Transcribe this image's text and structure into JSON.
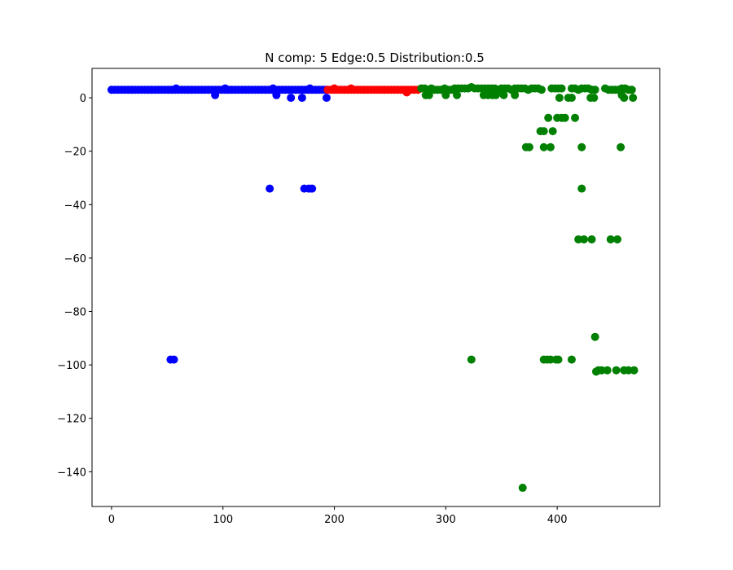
{
  "chart_data": {
    "type": "scatter",
    "title": "N comp: 5 Edge:0.5 Distribution:0.5",
    "xlabel": "",
    "ylabel": "",
    "xlim": [
      -17.5,
      492
    ],
    "ylim": [
      -153,
      11
    ],
    "xticks": [
      0,
      100,
      200,
      300,
      400
    ],
    "yticks": [
      0,
      -20,
      -40,
      -60,
      -80,
      -100,
      -120,
      -140
    ],
    "xtick_labels": [
      "0",
      "100",
      "200",
      "300",
      "400"
    ],
    "ytick_labels": [
      "0",
      "−20",
      "−40",
      "−60",
      "−80",
      "−100",
      "−120",
      "−140"
    ],
    "grid": false,
    "series": [
      {
        "color": "#0000ff",
        "points": [
          [
            0,
            3
          ],
          [
            3,
            3
          ],
          [
            6,
            3
          ],
          [
            9,
            3
          ],
          [
            12,
            3
          ],
          [
            15,
            3
          ],
          [
            18,
            3
          ],
          [
            21,
            3
          ],
          [
            24,
            3
          ],
          [
            27,
            3
          ],
          [
            30,
            3
          ],
          [
            33,
            3
          ],
          [
            36,
            3
          ],
          [
            39,
            3
          ],
          [
            42,
            3
          ],
          [
            45,
            3
          ],
          [
            48,
            3
          ],
          [
            51,
            3
          ],
          [
            54,
            3
          ],
          [
            57,
            3
          ],
          [
            60,
            3
          ],
          [
            63,
            3
          ],
          [
            66,
            3
          ],
          [
            69,
            3
          ],
          [
            72,
            3
          ],
          [
            75,
            3
          ],
          [
            78,
            3
          ],
          [
            81,
            3
          ],
          [
            84,
            3
          ],
          [
            87,
            3
          ],
          [
            90,
            3
          ],
          [
            93,
            3
          ],
          [
            96,
            3
          ],
          [
            99,
            3
          ],
          [
            102,
            3
          ],
          [
            105,
            3
          ],
          [
            108,
            3
          ],
          [
            111,
            3
          ],
          [
            114,
            3
          ],
          [
            117,
            3
          ],
          [
            120,
            3
          ],
          [
            123,
            3
          ],
          [
            126,
            3
          ],
          [
            129,
            3
          ],
          [
            132,
            3
          ],
          [
            135,
            3
          ],
          [
            138,
            3
          ],
          [
            141,
            3
          ],
          [
            144,
            3
          ],
          [
            147,
            3
          ],
          [
            150,
            3
          ],
          [
            153,
            3
          ],
          [
            156,
            3
          ],
          [
            159,
            3
          ],
          [
            162,
            3
          ],
          [
            165,
            3
          ],
          [
            168,
            3
          ],
          [
            171,
            3
          ],
          [
            174,
            3
          ],
          [
            177,
            3
          ],
          [
            180,
            3
          ],
          [
            183,
            3
          ],
          [
            186,
            3
          ],
          [
            189,
            3
          ],
          [
            192,
            3
          ],
          [
            58,
            3.5
          ],
          [
            102,
            3.5
          ],
          [
            145,
            3.5
          ],
          [
            178,
            3.5
          ],
          [
            93,
            1
          ],
          [
            148,
            1
          ],
          [
            161,
            0
          ],
          [
            171,
            0
          ],
          [
            193,
            0
          ],
          [
            142,
            -34
          ],
          [
            173,
            -34
          ],
          [
            177,
            -34
          ],
          [
            180,
            -34
          ],
          [
            53,
            -98
          ],
          [
            56,
            -98
          ]
        ]
      },
      {
        "color": "#ff0000",
        "points": [
          [
            194,
            3
          ],
          [
            197,
            3
          ],
          [
            200,
            3
          ],
          [
            203,
            3
          ],
          [
            206,
            3
          ],
          [
            209,
            3
          ],
          [
            212,
            3
          ],
          [
            215,
            3
          ],
          [
            218,
            3
          ],
          [
            221,
            3
          ],
          [
            224,
            3
          ],
          [
            227,
            3
          ],
          [
            230,
            3
          ],
          [
            233,
            3
          ],
          [
            236,
            3
          ],
          [
            239,
            3
          ],
          [
            242,
            3
          ],
          [
            245,
            3
          ],
          [
            248,
            3
          ],
          [
            251,
            3
          ],
          [
            254,
            3
          ],
          [
            257,
            3
          ],
          [
            260,
            3
          ],
          [
            263,
            3
          ],
          [
            266,
            3
          ],
          [
            269,
            3
          ],
          [
            272,
            3
          ],
          [
            275,
            3
          ],
          [
            200,
            3.5
          ],
          [
            215,
            3.5
          ],
          [
            265,
            2
          ]
        ]
      },
      {
        "color": "#008000",
        "points": [
          [
            278,
            3.5
          ],
          [
            281,
            3.5
          ],
          [
            284,
            3
          ],
          [
            287,
            3.5
          ],
          [
            290,
            3
          ],
          [
            293,
            3
          ],
          [
            296,
            3
          ],
          [
            299,
            3.5
          ],
          [
            302,
            3
          ],
          [
            305,
            3
          ],
          [
            308,
            3.5
          ],
          [
            311,
            3.5
          ],
          [
            314,
            3.5
          ],
          [
            317,
            3.5
          ],
          [
            320,
            3.5
          ],
          [
            323,
            4
          ],
          [
            326,
            3.5
          ],
          [
            329,
            3.5
          ],
          [
            332,
            3.5
          ],
          [
            335,
            3.5
          ],
          [
            338,
            3.5
          ],
          [
            341,
            3.5
          ],
          [
            344,
            3.5
          ],
          [
            347,
            3
          ],
          [
            350,
            3.5
          ],
          [
            353,
            3.5
          ],
          [
            356,
            3.5
          ],
          [
            359,
            3
          ],
          [
            362,
            3.5
          ],
          [
            365,
            3.5
          ],
          [
            368,
            3.5
          ],
          [
            371,
            3.5
          ],
          [
            374,
            3
          ],
          [
            377,
            3.5
          ],
          [
            380,
            3.5
          ],
          [
            383,
            3.5
          ],
          [
            386,
            3
          ],
          [
            395,
            3.5
          ],
          [
            398,
            3.5
          ],
          [
            401,
            3.5
          ],
          [
            404,
            3.5
          ],
          [
            413,
            3.5
          ],
          [
            416,
            3.5
          ],
          [
            419,
            3
          ],
          [
            422,
            3.5
          ],
          [
            425,
            3.5
          ],
          [
            428,
            3.5
          ],
          [
            431,
            3
          ],
          [
            434,
            3
          ],
          [
            443,
            3.5
          ],
          [
            446,
            3
          ],
          [
            449,
            3
          ],
          [
            452,
            3
          ],
          [
            455,
            3
          ],
          [
            458,
            3.5
          ],
          [
            461,
            3.5
          ],
          [
            464,
            3
          ],
          [
            467,
            3
          ],
          [
            282,
            1
          ],
          [
            285,
            1
          ],
          [
            300,
            1
          ],
          [
            310,
            1
          ],
          [
            334,
            1
          ],
          [
            338,
            1
          ],
          [
            342,
            1
          ],
          [
            345,
            1
          ],
          [
            352,
            1
          ],
          [
            362,
            1
          ],
          [
            458,
            1
          ],
          [
            402,
            0
          ],
          [
            410,
            0
          ],
          [
            413,
            0
          ],
          [
            430,
            0
          ],
          [
            433,
            0
          ],
          [
            460,
            0
          ],
          [
            468,
            0
          ],
          [
            392,
            -7.5
          ],
          [
            400,
            -7.5
          ],
          [
            404,
            -7.5
          ],
          [
            407,
            -7.5
          ],
          [
            416,
            -7.5
          ],
          [
            385,
            -12.5
          ],
          [
            388,
            -12.5
          ],
          [
            396,
            -12.5
          ],
          [
            372,
            -18.5
          ],
          [
            375,
            -18.5
          ],
          [
            388,
            -18.5
          ],
          [
            394,
            -18.5
          ],
          [
            422,
            -18.5
          ],
          [
            457,
            -18.5
          ],
          [
            422,
            -34
          ],
          [
            419,
            -53
          ],
          [
            424,
            -53
          ],
          [
            431,
            -53
          ],
          [
            448,
            -53
          ],
          [
            454,
            -53
          ],
          [
            434,
            -89.5
          ],
          [
            323,
            -98
          ],
          [
            388,
            -98
          ],
          [
            391,
            -98
          ],
          [
            394,
            -98
          ],
          [
            399,
            -98
          ],
          [
            401,
            -98
          ],
          [
            413,
            -98
          ],
          [
            435,
            -102.5
          ],
          [
            437,
            -102
          ],
          [
            440,
            -102
          ],
          [
            445,
            -102
          ],
          [
            453,
            -102
          ],
          [
            460,
            -102
          ],
          [
            464,
            -102
          ],
          [
            469,
            -102
          ],
          [
            369,
            -146
          ]
        ]
      }
    ]
  }
}
